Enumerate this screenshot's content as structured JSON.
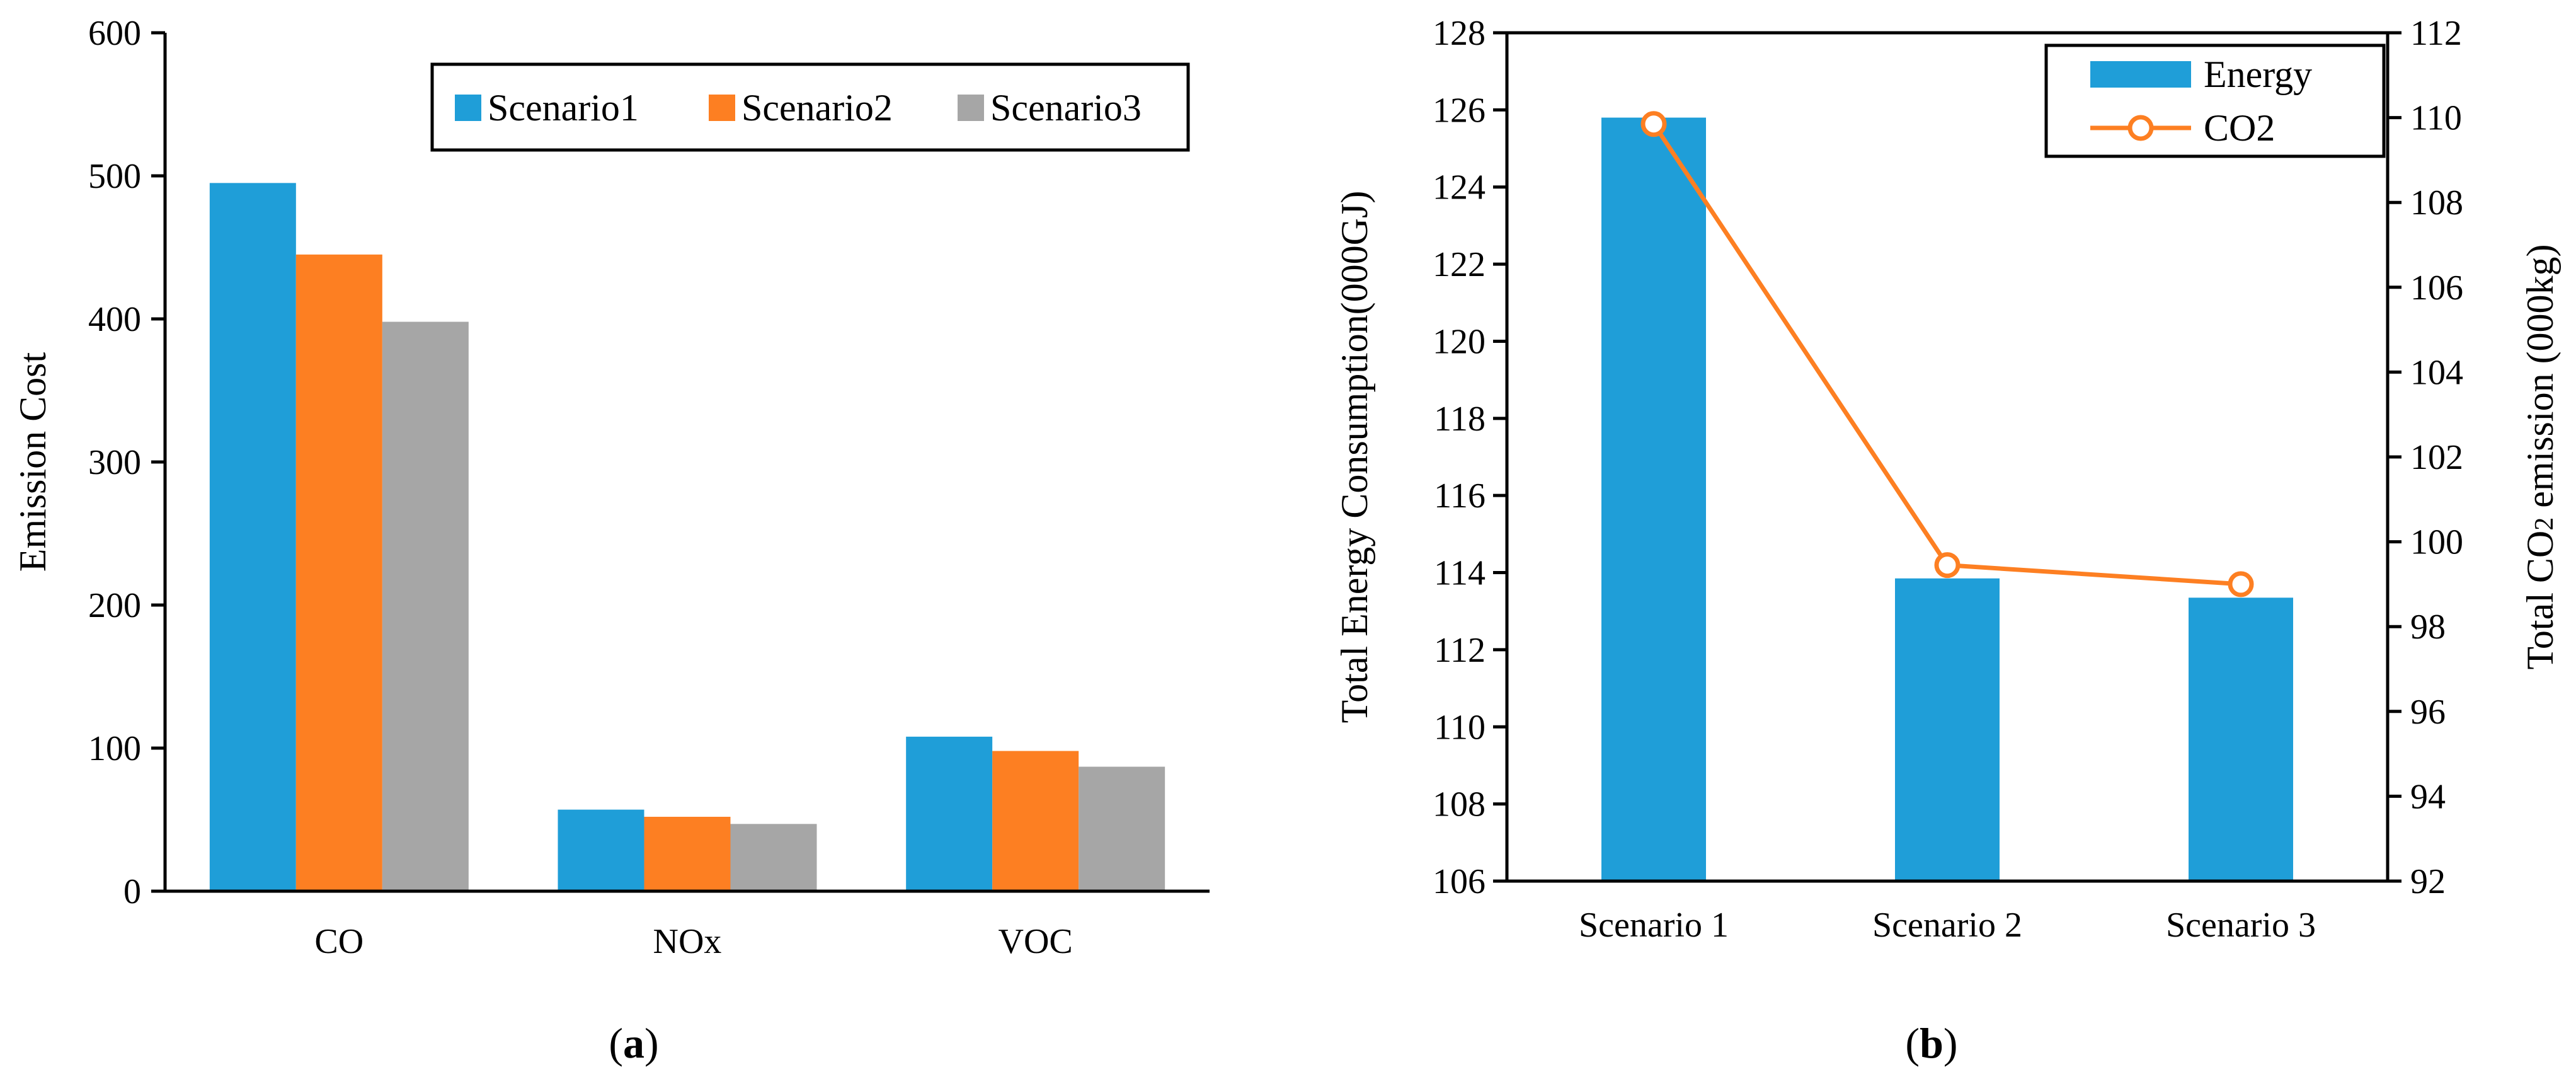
{
  "colors": {
    "scenario1": "#1f9ed8",
    "scenario2": "#fd7f22",
    "scenario3": "#a6a6a6",
    "energy": "#1f9ed8",
    "co2": "#fd7f22"
  },
  "panel_labels": {
    "a": {
      "open": "(",
      "letter": "a",
      "close": ")"
    },
    "b": {
      "open": "(",
      "letter": "b",
      "close": ")"
    }
  },
  "chart_data": [
    {
      "id": "a",
      "type": "bar",
      "title": "",
      "xlabel": "",
      "ylabel": "Emission Cost",
      "categories": [
        "CO",
        "NOx",
        "VOC"
      ],
      "series": [
        {
          "name": "Scenario1",
          "values": [
            495,
            57,
            108
          ]
        },
        {
          "name": "Scenario2",
          "values": [
            445,
            52,
            98
          ]
        },
        {
          "name": "Scenario3",
          "values": [
            398,
            47,
            87
          ]
        }
      ],
      "ylim": [
        0,
        600
      ],
      "yticks": [
        "0",
        "100",
        "200",
        "300",
        "400",
        "500",
        "600"
      ],
      "grid": false,
      "legend_position": "top-right"
    },
    {
      "id": "b",
      "type": "bar+line",
      "title": "",
      "xlabel": "",
      "categories": [
        "Scenario 1",
        "Scenario 2",
        "Scenario 3"
      ],
      "bar_series": {
        "name": "Energy",
        "axis": "left",
        "values": [
          125.8,
          113.85,
          113.35
        ]
      },
      "line_series": {
        "name": "CO2",
        "axis": "right",
        "values": [
          109.85,
          99.45,
          99.0
        ]
      },
      "ylabel_left": "Total Energy Consumption(000GJ)",
      "ylabel_right": {
        "prefix": "Total CO",
        "subscript": "2",
        "suffix": " emission (000kg)"
      },
      "ylim_left": [
        106,
        128
      ],
      "yticks_left": [
        "106",
        "108",
        "110",
        "112",
        "114",
        "116",
        "118",
        "120",
        "122",
        "124",
        "126",
        "128"
      ],
      "ylim_right": [
        92,
        112
      ],
      "yticks_right": [
        "92",
        "94",
        "96",
        "98",
        "100",
        "102",
        "104",
        "106",
        "108",
        "110",
        "112"
      ],
      "grid": false,
      "legend_position": "top-right"
    }
  ]
}
